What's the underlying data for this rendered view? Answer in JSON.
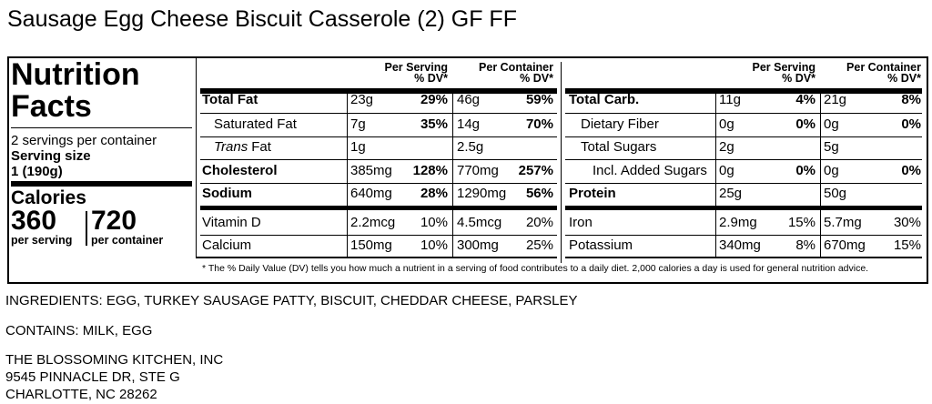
{
  "title": "Sausage Egg Cheese Biscuit Casserole (2) GF FF",
  "label": {
    "heading": [
      "Nutrition",
      "Facts"
    ],
    "servings": "2 servings per container",
    "serving_size_label": "Serving size",
    "serving_size": "1 (190g)",
    "calories_label": "Calories",
    "calories_serving": "360",
    "calories_serving_label": "per serving",
    "calories_container": "720",
    "calories_container_label": "per container",
    "column_headers": [
      [
        "Per Serving",
        "% DV*"
      ],
      [
        "Per Container",
        "% DV*"
      ]
    ],
    "tables": [
      {
        "main": [
          {
            "name": "Total Fat",
            "bold": true,
            "indent": 0,
            "serving": "23g",
            "serving_dv": "29%",
            "container": "46g",
            "container_dv": "59%"
          },
          {
            "name": "Saturated Fat",
            "bold": false,
            "indent": 1,
            "serving": "7g",
            "serving_dv": "35%",
            "container": "14g",
            "container_dv": "70%"
          },
          {
            "name_italic": "Trans",
            "name": "Fat",
            "bold": false,
            "indent": 1,
            "serving": "1g",
            "serving_dv": null,
            "container": "2.5g",
            "container_dv": null
          },
          {
            "name": "Cholesterol",
            "bold": true,
            "indent": 0,
            "serving": "385mg",
            "serving_dv": "128%",
            "container": "770mg",
            "container_dv": "257%"
          },
          {
            "name": "Sodium",
            "bold": true,
            "indent": 0,
            "serving": "640mg",
            "serving_dv": "28%",
            "container": "1290mg",
            "container_dv": "56%"
          }
        ],
        "minerals": [
          {
            "name": "Vitamin D",
            "serving": "2.2mcg",
            "serving_dv": "10%",
            "container": "4.5mcg",
            "container_dv": "20%"
          },
          {
            "name": "Calcium",
            "serving": "150mg",
            "serving_dv": "10%",
            "container": "300mg",
            "container_dv": "25%"
          }
        ]
      },
      {
        "main": [
          {
            "name": "Total Carb.",
            "bold": true,
            "indent": 0,
            "serving": "11g",
            "serving_dv": "4%",
            "container": "21g",
            "container_dv": "8%"
          },
          {
            "name": "Dietary Fiber",
            "bold": false,
            "indent": 1,
            "serving": "0g",
            "serving_dv": "0%",
            "container": "0g",
            "container_dv": "0%"
          },
          {
            "name": "Total Sugars",
            "bold": false,
            "indent": 1,
            "serving": "2g",
            "serving_dv": null,
            "container": "5g",
            "container_dv": null
          },
          {
            "name": "Incl. Added Sugars",
            "bold": false,
            "indent": 2,
            "serving": "0g",
            "serving_dv": "0%",
            "container": "0g",
            "container_dv": "0%"
          },
          {
            "name": "Protein",
            "bold": true,
            "indent": 0,
            "serving": "25g",
            "serving_dv": null,
            "container": "50g",
            "container_dv": null
          }
        ],
        "minerals": [
          {
            "name": "Iron",
            "serving": "2.9mg",
            "serving_dv": "15%",
            "container": "5.7mg",
            "container_dv": "30%"
          },
          {
            "name": "Potassium",
            "serving": "340mg",
            "serving_dv": "8%",
            "container": "670mg",
            "container_dv": "15%"
          }
        ]
      }
    ],
    "footnote": "* The % Daily Value (DV) tells you how much a nutrient in a serving of food contributes to a daily diet. 2,000 calories a day is used for general nutrition advice."
  },
  "ingredients": "INGREDIENTS: EGG, TURKEY SAUSAGE PATTY, BISCUIT, CHEDDAR CHEESE, PARSLEY",
  "contains": "CONTAINS: MILK, EGG",
  "address": [
    "THE BLOSSOMING KITCHEN, INC",
    "9545 PINNACLE DR, STE G",
    "CHARLOTTE, NC 28262"
  ]
}
